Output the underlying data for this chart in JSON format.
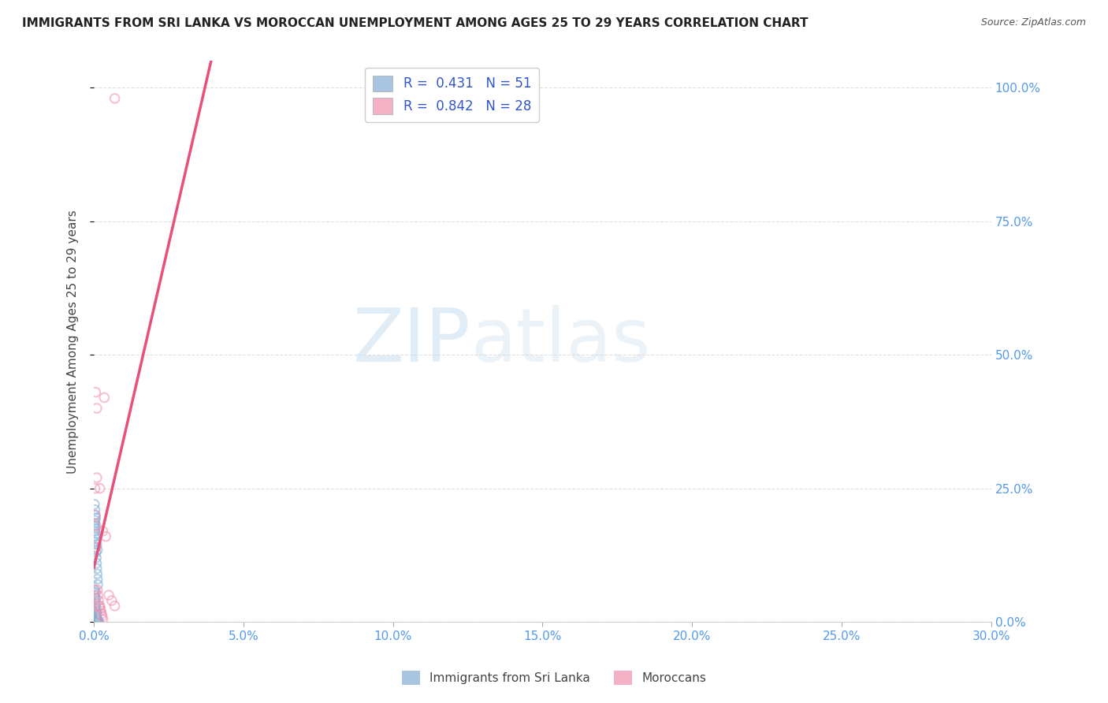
{
  "title": "IMMIGRANTS FROM SRI LANKA VS MOROCCAN UNEMPLOYMENT AMONG AGES 25 TO 29 YEARS CORRELATION CHART",
  "source": "Source: ZipAtlas.com",
  "ylabel_label": "Unemployment Among Ages 25 to 29 years",
  "legend_entries": [
    {
      "label": "Immigrants from Sri Lanka",
      "R": "0.431",
      "N": "51",
      "color": "#a8c4e0"
    },
    {
      "label": "Moroccans",
      "R": "0.842",
      "N": "28",
      "color": "#f4a0b8"
    }
  ],
  "sri_lanka_x": [
    0.0002,
    0.0004,
    0.0006,
    0.0003,
    0.0005,
    0.0007,
    0.0008,
    0.001,
    0.0012,
    0.0003,
    0.0005,
    0.0008,
    0.001,
    0.0006,
    0.0004,
    0.0007,
    0.0009,
    0.0011,
    0.0002,
    0.0003,
    0.0004,
    0.0005,
    0.0006,
    0.0007,
    0.0008,
    0.0009,
    0.001,
    0.0011,
    0.0012,
    0.0013,
    0.0002,
    0.0003,
    0.0004,
    0.0005,
    0.0006,
    0.0007,
    0.0008,
    0.0009,
    0.001,
    0.0011,
    0.0012,
    0.0013,
    0.0014,
    0.0015,
    0.0016,
    0.0003,
    0.0004,
    0.0005,
    0.0006,
    0.0007,
    0.0008
  ],
  "sri_lanka_y": [
    0.22,
    0.21,
    0.195,
    0.185,
    0.175,
    0.165,
    0.155,
    0.145,
    0.135,
    0.025,
    0.02,
    0.018,
    0.016,
    0.014,
    0.012,
    0.01,
    0.008,
    0.006,
    0.18,
    0.17,
    0.16,
    0.15,
    0.14,
    0.13,
    0.12,
    0.11,
    0.1,
    0.09,
    0.08,
    0.07,
    0.06,
    0.05,
    0.04,
    0.03,
    0.02,
    0.01,
    0.005,
    0.004,
    0.003,
    0.002,
    0.002,
    0.001,
    0.001,
    0.001,
    0.001,
    0.2,
    0.19,
    0.055,
    0.045,
    0.035,
    0.025
  ],
  "moroccan_x": [
    0.0002,
    0.0004,
    0.0006,
    0.0008,
    0.001,
    0.0012,
    0.0014,
    0.0016,
    0.0018,
    0.002,
    0.0022,
    0.0024,
    0.0026,
    0.0028,
    0.003,
    0.001,
    0.002,
    0.003,
    0.004,
    0.005,
    0.006,
    0.007,
    0.0004,
    0.0006,
    0.0008,
    0.0035,
    0.007,
    0.0002
  ],
  "moroccan_y": [
    0.05,
    0.06,
    0.43,
    0.14,
    0.4,
    0.06,
    0.05,
    0.04,
    0.03,
    0.03,
    0.025,
    0.02,
    0.015,
    0.01,
    0.005,
    0.27,
    0.25,
    0.17,
    0.16,
    0.05,
    0.04,
    0.03,
    0.25,
    0.2,
    0.18,
    0.42,
    0.98,
    0.03
  ],
  "bg_color": "#ffffff",
  "grid_color": "#e0e0e0",
  "scatter_size": 70,
  "scatter_alpha": 0.55,
  "sri_scatter_color": "#7ab0d8",
  "mor_scatter_color": "#f090b0",
  "trend_color_sri": "#b0cce0",
  "trend_color_mor": "#e8507a",
  "trend_lw_sri": 1.5,
  "trend_lw_mor": 2.5,
  "watermark_zip": "ZIP",
  "watermark_atlas": "atlas",
  "title_fontsize": 11,
  "axis_tick_color": "#5599ee",
  "xlim": [
    0.0,
    0.3
  ],
  "ylim": [
    0.0,
    1.05
  ],
  "x_ticks": [
    0.0,
    0.05,
    0.1,
    0.15,
    0.2,
    0.25,
    0.3
  ],
  "y_ticks": [
    0.0,
    0.25,
    0.5,
    0.75,
    1.0
  ]
}
